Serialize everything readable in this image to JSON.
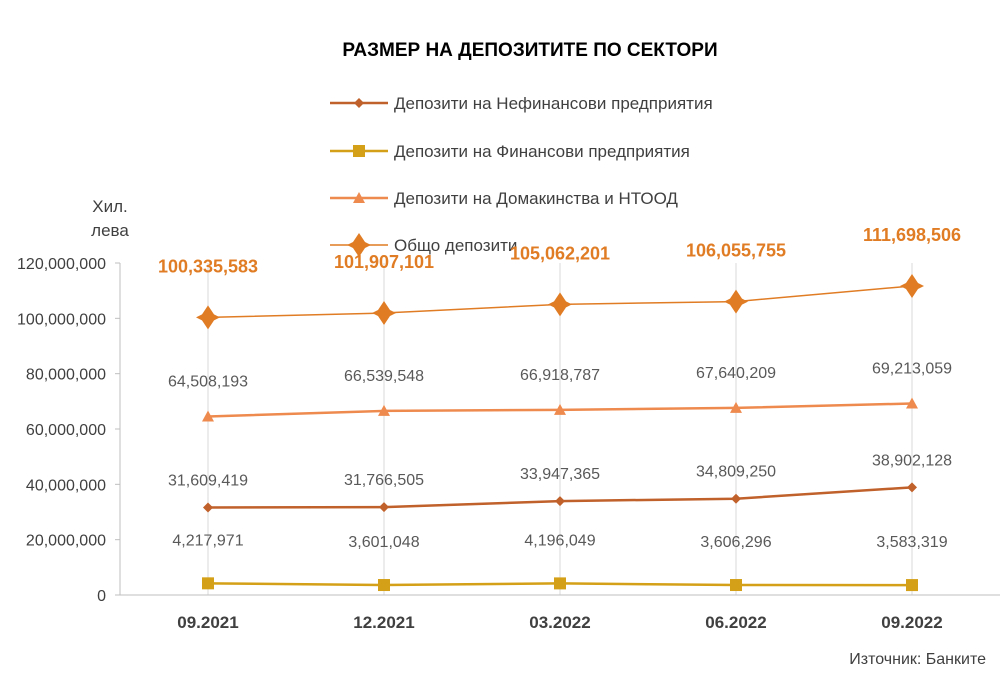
{
  "chart_data": {
    "type": "line",
    "title": "РАЗМЕР НА ДЕПОЗИТИТЕ ПО СЕКТОРИ",
    "y_unit_label": [
      "Хил.",
      "лева"
    ],
    "categories": [
      "09.2021",
      "12.2021",
      "03.2022",
      "06.2022",
      "09.2022"
    ],
    "ylim": [
      0,
      120000000
    ],
    "yticks": [
      0,
      20000000,
      40000000,
      60000000,
      80000000,
      100000000,
      120000000
    ],
    "ytick_labels": [
      "0",
      "20,000,000",
      "40,000,000",
      "60,000,000",
      "80,000,000",
      "100,000,000",
      "120,000,000"
    ],
    "grid": "vertical",
    "legend_position": "top",
    "series": [
      {
        "name": "Депозити на Нефинансови предприятия",
        "marker": "diamond",
        "color": "#C0602A",
        "values": [
          31609419,
          31766505,
          33947365,
          34809250,
          38902128
        ],
        "labels": [
          "31,609,419",
          "31,766,505",
          "33,947,365",
          "34,809,250",
          "38,902,128"
        ]
      },
      {
        "name": "Депозити на Финансови предприятия",
        "marker": "square",
        "color": "#D4A017",
        "values": [
          4217971,
          3601048,
          4196049,
          3606296,
          3583319
        ],
        "labels": [
          "4,217,971",
          "3,601,048",
          "4,196,049",
          "3,606,296",
          "3,583,319"
        ]
      },
      {
        "name": "Депозити на Домакинства и НТООД",
        "marker": "triangle",
        "color": "#EE8A4E",
        "values": [
          64508193,
          66539548,
          66918787,
          67640209,
          69213059
        ],
        "labels": [
          "64,508,193",
          "66,539,548",
          "66,918,787",
          "67,640,209",
          "69,213,059"
        ]
      },
      {
        "name": "Общо депозити",
        "marker": "big-diamond",
        "color": "#E07C24",
        "values": [
          100335583,
          101907101,
          105062201,
          106055755,
          111698506
        ],
        "labels": [
          "100,335,583",
          "101,907,101",
          "105,062,201",
          "106,055,755",
          "111,698,506"
        ]
      }
    ],
    "source_note": "Източник: Банките"
  }
}
